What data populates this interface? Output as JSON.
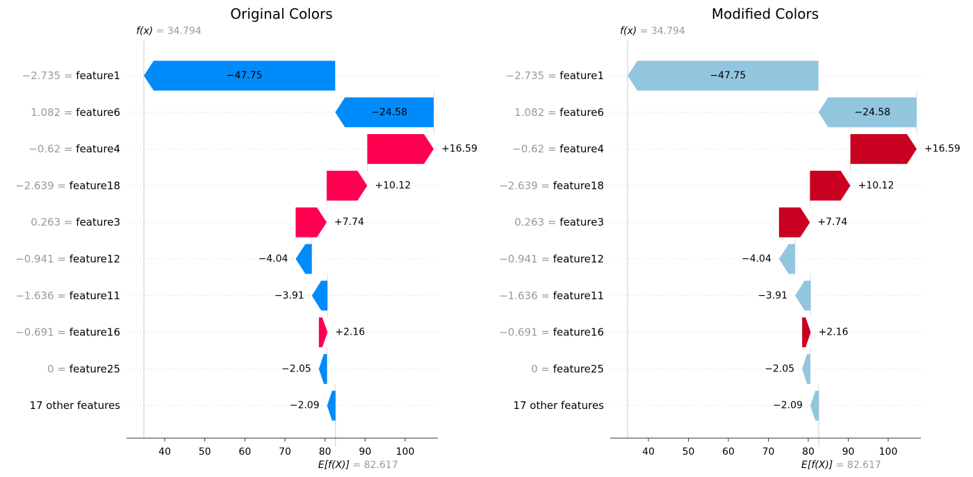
{
  "chart_data": [
    {
      "type": "waterfall",
      "title": "Original Colors",
      "fx_label": "f(x)",
      "fx_value": "34.794",
      "efx_label": "E[f(X)]",
      "efx_value": "82.617",
      "base_value": 82.617,
      "xticks": [
        40,
        50,
        60,
        70,
        80,
        90,
        100
      ],
      "xlim": [
        30,
        109
      ],
      "positive_color": "#ff0051",
      "negative_color": "#008bfb",
      "rows": [
        {
          "value_text": "−2.735",
          "feature": "feature1",
          "shap": -47.75,
          "label": "−47.75"
        },
        {
          "value_text": "1.082",
          "feature": "feature6",
          "shap": -24.58,
          "label": "−24.58"
        },
        {
          "value_text": "−0.62",
          "feature": "feature4",
          "shap": 16.59,
          "label": "+16.59"
        },
        {
          "value_text": "−2.639",
          "feature": "feature18",
          "shap": 10.12,
          "label": "+10.12"
        },
        {
          "value_text": "0.263",
          "feature": "feature3",
          "shap": 7.74,
          "label": "+7.74"
        },
        {
          "value_text": "−0.941",
          "feature": "feature12",
          "shap": -4.04,
          "label": "−4.04"
        },
        {
          "value_text": "−1.636",
          "feature": "feature11",
          "shap": -3.91,
          "label": "−3.91"
        },
        {
          "value_text": "−0.691",
          "feature": "feature16",
          "shap": 2.16,
          "label": "+2.16"
        },
        {
          "value_text": "0",
          "feature": "feature25",
          "shap": -2.05,
          "label": "−2.05"
        },
        {
          "value_text": "",
          "feature": "17 other features",
          "shap": -2.09,
          "label": "−2.09"
        }
      ]
    },
    {
      "type": "waterfall",
      "title": "Modified Colors",
      "fx_label": "f(x)",
      "fx_value": "34.794",
      "efx_label": "E[f(X)]",
      "efx_value": "82.617",
      "base_value": 82.617,
      "xticks": [
        40,
        50,
        60,
        70,
        80,
        90,
        100
      ],
      "xlim": [
        30,
        109
      ],
      "positive_color": "#ca0020",
      "negative_color": "#92c5de",
      "rows": [
        {
          "value_text": "−2.735",
          "feature": "feature1",
          "shap": -47.75,
          "label": "−47.75"
        },
        {
          "value_text": "1.082",
          "feature": "feature6",
          "shap": -24.58,
          "label": "−24.58"
        },
        {
          "value_text": "−0.62",
          "feature": "feature4",
          "shap": 16.59,
          "label": "+16.59"
        },
        {
          "value_text": "−2.639",
          "feature": "feature18",
          "shap": 10.12,
          "label": "+10.12"
        },
        {
          "value_text": "0.263",
          "feature": "feature3",
          "shap": 7.74,
          "label": "+7.74"
        },
        {
          "value_text": "−0.941",
          "feature": "feature12",
          "shap": -4.04,
          "label": "−4.04"
        },
        {
          "value_text": "−1.636",
          "feature": "feature11",
          "shap": -3.91,
          "label": "−3.91"
        },
        {
          "value_text": "−0.691",
          "feature": "feature16",
          "shap": 2.16,
          "label": "+2.16"
        },
        {
          "value_text": "0",
          "feature": "feature25",
          "shap": -2.05,
          "label": "−2.05"
        },
        {
          "value_text": "",
          "feature": "17 other features",
          "shap": -2.09,
          "label": "−2.09"
        }
      ]
    }
  ]
}
